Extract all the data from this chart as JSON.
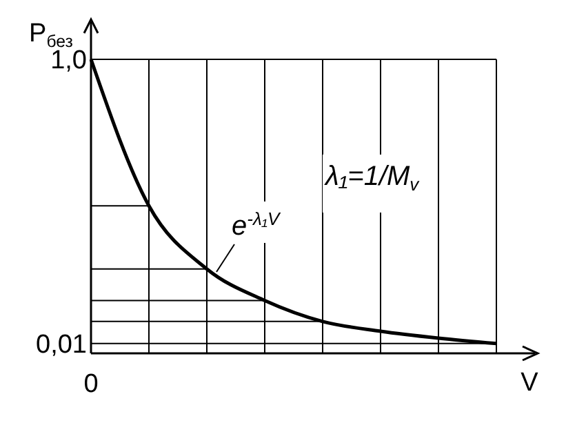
{
  "chart_data": {
    "type": "line",
    "xlabel": "V",
    "ylabel": "P$_{без}$",
    "categories": [
      "0",
      null,
      null,
      null,
      null,
      null,
      null,
      null
    ],
    "series": [
      {
        "color": "#000000",
        "values": [
          1.0,
          0.49,
          0.27,
          0.16,
          0.087,
          0.053,
          0.029,
          0.01
        ]
      }
    ],
    "ylim": [
      -0.024,
      1
    ],
    "yticks": [
      {
        "value": 0.01,
        "label": "0,01"
      },
      {
        "value": 1,
        "label": "1,0"
      }
    ],
    "grid": "x",
    "marker": "none",
    "line_style": "solid",
    "ref_lines": [
      {
        "axis": "y",
        "value": 0.49,
        "color": "#000000"
      },
      {
        "axis": "y",
        "value": 0.27,
        "color": "#000000"
      },
      {
        "axis": "y",
        "value": 0.16,
        "color": "#000000"
      },
      {
        "axis": "y",
        "value": 0.087,
        "color": "#000000"
      },
      {
        "axis": "y",
        "value": 0.01,
        "color": "#000000"
      }
    ],
    "annotations": [
      "e$^{-λ₁V}$",
      "λ₁=1/M$_{v}$"
    ]
  }
}
